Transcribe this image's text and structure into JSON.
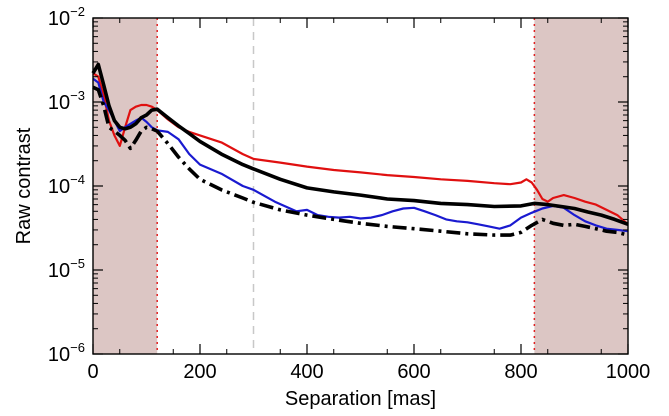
{
  "chart_data": {
    "type": "line",
    "xlabel": "Separation [mas]",
    "ylabel": "Raw contrast",
    "xlim": [
      0,
      1000
    ],
    "ylim": [
      1e-06,
      0.01
    ],
    "y_scale": "log",
    "grid": false,
    "x_ticks": [
      {
        "value": 0,
        "label": "0"
      },
      {
        "value": 200,
        "label": "200"
      },
      {
        "value": 400,
        "label": "400"
      },
      {
        "value": 600,
        "label": "600"
      },
      {
        "value": 800,
        "label": "800"
      },
      {
        "value": 1000,
        "label": "1000"
      }
    ],
    "y_ticks": [
      {
        "value": 1e-06,
        "base": "10",
        "exp": "−6"
      },
      {
        "value": 1e-05,
        "base": "10",
        "exp": "−5"
      },
      {
        "value": 0.0001,
        "base": "10",
        "exp": "−4"
      },
      {
        "value": 0.001,
        "base": "10",
        "exp": "−3"
      },
      {
        "value": 0.01,
        "base": "10",
        "exp": "−2"
      }
    ],
    "shaded_regions": [
      {
        "x": [
          0,
          120
        ],
        "color": "#dcc6c4"
      },
      {
        "x": [
          825,
          1000
        ],
        "color": "#dcc6c4"
      }
    ],
    "vertical_lines": [
      {
        "x": 120,
        "color": "#e02020",
        "style": "dotted"
      },
      {
        "x": 300,
        "color": "#c8c8c8",
        "style": "dashed"
      },
      {
        "x": 825,
        "color": "#e02020",
        "style": "dotted"
      }
    ],
    "series": [
      {
        "color": "#e01010",
        "style": "solid",
        "width": 2.2,
        "x": [
          0,
          10,
          20,
          30,
          40,
          50,
          60,
          70,
          80,
          90,
          100,
          110,
          120,
          140,
          160,
          180,
          200,
          240,
          280,
          300,
          350,
          400,
          450,
          500,
          550,
          600,
          650,
          700,
          750,
          780,
          800,
          810,
          820,
          830,
          840,
          850,
          860,
          880,
          900,
          920,
          940,
          960,
          980,
          1000
        ],
        "y": [
          0.0022,
          0.002,
          0.0012,
          0.0006,
          0.0004,
          0.0003,
          0.0005,
          0.0008,
          0.00088,
          0.00092,
          0.00092,
          0.00088,
          0.0008,
          0.00062,
          0.0005,
          0.00044,
          0.0004,
          0.00033,
          0.00024,
          0.00021,
          0.00019,
          0.00017,
          0.000155,
          0.000145,
          0.000135,
          0.000128,
          0.00012,
          0.000115,
          0.000108,
          0.000105,
          0.00011,
          0.00012,
          0.00011,
          9e-05,
          7e-05,
          6.5e-05,
          7.2e-05,
          7.8e-05,
          7.2e-05,
          6.5e-05,
          6e-05,
          5.2e-05,
          4.5e-05,
          3.5e-05
        ]
      },
      {
        "color": "#1a1ad0",
        "style": "solid",
        "width": 2.2,
        "x": [
          0,
          10,
          20,
          30,
          40,
          50,
          60,
          70,
          80,
          90,
          100,
          110,
          120,
          140,
          160,
          180,
          200,
          240,
          280,
          300,
          340,
          380,
          400,
          420,
          440,
          460,
          480,
          500,
          520,
          540,
          560,
          580,
          600,
          620,
          640,
          660,
          680,
          700,
          720,
          740,
          760,
          780,
          800,
          820,
          840,
          860,
          880,
          900,
          920,
          940,
          960,
          980,
          1000
        ],
        "y": [
          0.0019,
          0.0017,
          0.001,
          0.0008,
          0.0006,
          0.00045,
          0.0005,
          0.00055,
          0.0006,
          0.00065,
          0.00058,
          0.0005,
          0.00046,
          0.00044,
          0.00036,
          0.00024,
          0.00018,
          0.00014,
          0.0001,
          9e-05,
          6.5e-05,
          5e-05,
          5.2e-05,
          4.5e-05,
          4.3e-05,
          4.2e-05,
          4.3e-05,
          4.1e-05,
          4.2e-05,
          4.5e-05,
          5e-05,
          5.4e-05,
          5.5e-05,
          5e-05,
          4.5e-05,
          4e-05,
          3.8e-05,
          3.7e-05,
          3.5e-05,
          3.3e-05,
          3.1e-05,
          3.4e-05,
          4.2e-05,
          4.8e-05,
          5.4e-05,
          5.8e-05,
          5.5e-05,
          4.5e-05,
          3.8e-05,
          3.4e-05,
          3.1e-05,
          3e-05,
          2.9e-05
        ]
      },
      {
        "color": "#000000",
        "style": "solid",
        "width": 3.6,
        "x": [
          0,
          10,
          20,
          30,
          40,
          50,
          60,
          70,
          80,
          90,
          100,
          110,
          120,
          140,
          160,
          180,
          200,
          240,
          280,
          300,
          350,
          400,
          450,
          500,
          550,
          600,
          650,
          700,
          750,
          800,
          825,
          850,
          875,
          900,
          925,
          950,
          975,
          1000
        ],
        "y": [
          0.0022,
          0.0028,
          0.0016,
          0.0009,
          0.0006,
          0.0005,
          0.00048,
          0.0005,
          0.00055,
          0.00065,
          0.0007,
          0.0008,
          0.00082,
          0.00065,
          0.00052,
          0.00042,
          0.00034,
          0.00024,
          0.00018,
          0.00016,
          0.00012,
          9.5e-05,
          8.5e-05,
          7.8e-05,
          7e-05,
          6.7e-05,
          6.2e-05,
          6e-05,
          5.7e-05,
          5.8e-05,
          6.2e-05,
          6e-05,
          5.7e-05,
          5.4e-05,
          4.9e-05,
          4.5e-05,
          4e-05,
          3.5e-05
        ]
      },
      {
        "color": "#000000",
        "style": "dashdot",
        "width": 3.6,
        "x": [
          0,
          10,
          20,
          30,
          40,
          50,
          60,
          70,
          80,
          90,
          100,
          110,
          120,
          140,
          160,
          180,
          200,
          240,
          280,
          300,
          350,
          400,
          450,
          500,
          550,
          600,
          650,
          700,
          750,
          780,
          800,
          820,
          840,
          860,
          880,
          900,
          920,
          940,
          960,
          980,
          1000
        ],
        "y": [
          0.0015,
          0.0014,
          0.0009,
          0.0005,
          0.00045,
          0.0004,
          0.00035,
          0.00028,
          0.00035,
          0.00045,
          0.0005,
          0.00048,
          0.00045,
          0.00032,
          0.00022,
          0.00016,
          0.00012,
          9e-05,
          7.2e-05,
          6.4e-05,
          5.2e-05,
          4.5e-05,
          4e-05,
          3.6e-05,
          3.3e-05,
          3.1e-05,
          2.9e-05,
          2.7e-05,
          2.6e-05,
          2.6e-05,
          2.8e-05,
          3.4e-05,
          4e-05,
          3.6e-05,
          3.4e-05,
          3.5e-05,
          3.3e-05,
          3.1e-05,
          2.9e-05,
          2.8e-05,
          2.6e-05
        ]
      }
    ]
  }
}
